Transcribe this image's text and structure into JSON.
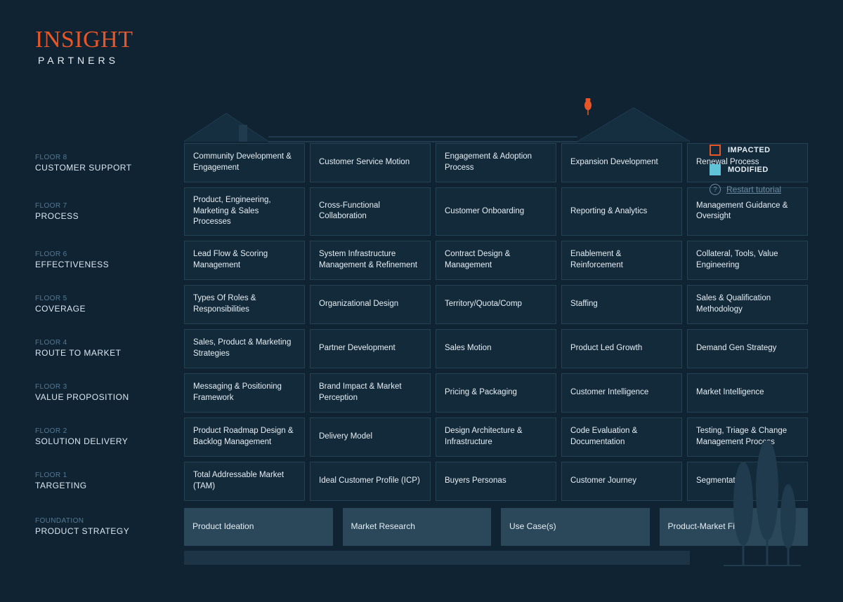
{
  "brand": {
    "name": "INSIGHT",
    "sub": "PARTNERS"
  },
  "colors": {
    "bg": "#0f2332",
    "cell_bg": "#132a3a",
    "cell_border": "#234354",
    "foundation_bg": "#2b475a",
    "accent": "#e85627",
    "modified": "#5fc4d8",
    "label_muted": "#547a95",
    "text": "#e6eef4",
    "tree": "#1f3b4d"
  },
  "legend": {
    "impacted": "IMPACTED",
    "modified": "MODIFIED",
    "restart": "Restart tutorial"
  },
  "floors": [
    {
      "floor": "FLOOR 8",
      "name": "CUSTOMER SUPPORT",
      "cells": [
        "Community Development & Engagement",
        "Customer Service Motion",
        "Engagement & Adoption Process",
        "Expansion Development",
        "Renewal Process"
      ]
    },
    {
      "floor": "FLOOR 7",
      "name": "PROCESS",
      "cells": [
        "Product, Engineering, Marketing & Sales Processes",
        "Cross-Functional Collaboration",
        "Customer Onboarding",
        "Reporting & Analytics",
        "Management Guidance & Oversight"
      ]
    },
    {
      "floor": "FLOOR 6",
      "name": "EFFECTIVENESS",
      "cells": [
        "Lead Flow & Scoring Management",
        "System Infrastructure Management & Refinement",
        "Contract Design & Management",
        "Enablement & Reinforcement",
        "Collateral, Tools, Value Engineering"
      ]
    },
    {
      "floor": "FLOOR 5",
      "name": "COVERAGE",
      "cells": [
        "Types Of Roles & Responsibilities",
        "Organizational Design",
        "Territory/Quota/Comp",
        "Staffing",
        "Sales & Qualification Methodology"
      ]
    },
    {
      "floor": "FLOOR 4",
      "name": "ROUTE TO MARKET",
      "cells": [
        "Sales, Product & Marketing Strategies",
        "Partner Development",
        "Sales Motion",
        "Product Led Growth",
        "Demand Gen Strategy"
      ]
    },
    {
      "floor": "FLOOR 3",
      "name": "VALUE PROPOSITION",
      "cells": [
        "Messaging & Positioning Framework",
        "Brand Impact & Market Perception",
        "Pricing & Packaging",
        "Customer Intelligence",
        "Market Intelligence"
      ]
    },
    {
      "floor": "FLOOR 2",
      "name": "SOLUTION DELIVERY",
      "cells": [
        "Product Roadmap Design & Backlog Management",
        "Delivery Model",
        "Design Architecture & Infrastructure",
        "Code Evaluation & Documentation",
        "Testing, Triage & Change Management Process"
      ]
    },
    {
      "floor": "FLOOR 1",
      "name": "TARGETING",
      "cells": [
        "Total Addressable Market (TAM)",
        "Ideal Customer Profile (ICP)",
        "Buyers Personas",
        "Customer Journey",
        "Segmentation"
      ]
    }
  ],
  "foundation": {
    "floor": "FOUNDATION",
    "name": "PRODUCT STRATEGY",
    "cells": [
      "Product Ideation",
      "Market Research",
      "Use Case(s)",
      "Product-Market Fit"
    ]
  }
}
